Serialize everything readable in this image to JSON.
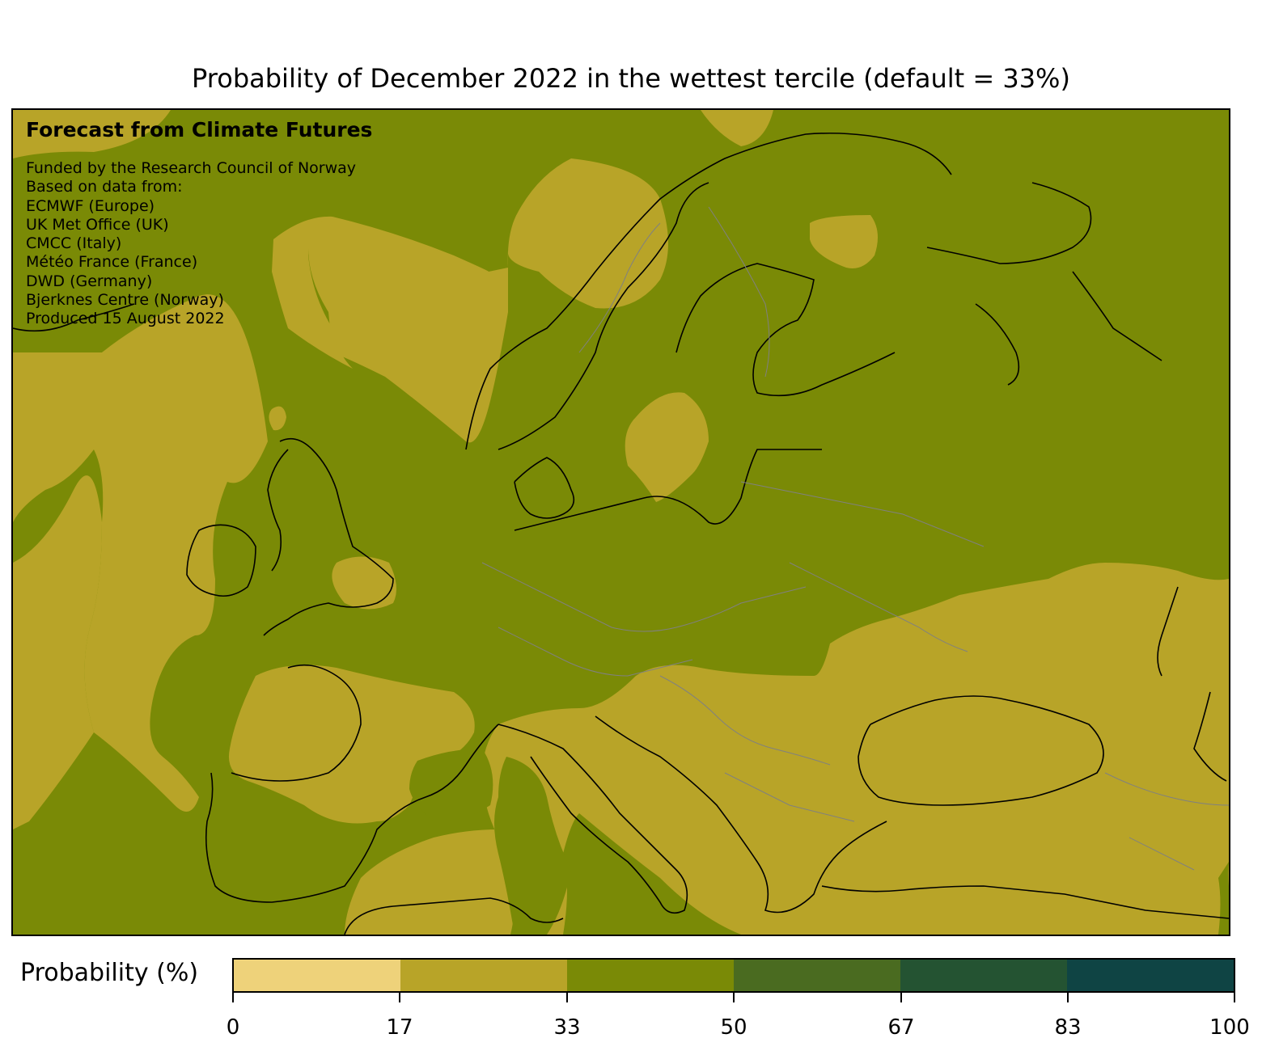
{
  "title": "Probability of December 2022 in the wettest tercile (default = 33%)",
  "credit": {
    "heading": "Forecast from Climate Futures",
    "lines": [
      "Funded by the Research Council of Norway",
      "Based on data from:",
      "ECMWF (Europe)",
      "UK Met Office (UK)",
      "CMCC (Italy)",
      "Météo France (France)",
      "DWD (Germany)",
      "Bjerknes Centre (Norway)",
      "Produced 15 August 2022"
    ]
  },
  "map": {
    "region": "Europe",
    "colors": {
      "band_17_33": "#b8a428",
      "band_33_50": "#7a8a06",
      "coastline": "#000000",
      "borders": "#808080"
    }
  },
  "colorbar": {
    "label": "Probability (%)",
    "ticks": [
      "0",
      "17",
      "33",
      "50",
      "67",
      "83",
      "100"
    ],
    "colors": [
      "#eed27a",
      "#b8a428",
      "#7a8a06",
      "#4a6b20",
      "#245332",
      "#0f4444"
    ]
  }
}
